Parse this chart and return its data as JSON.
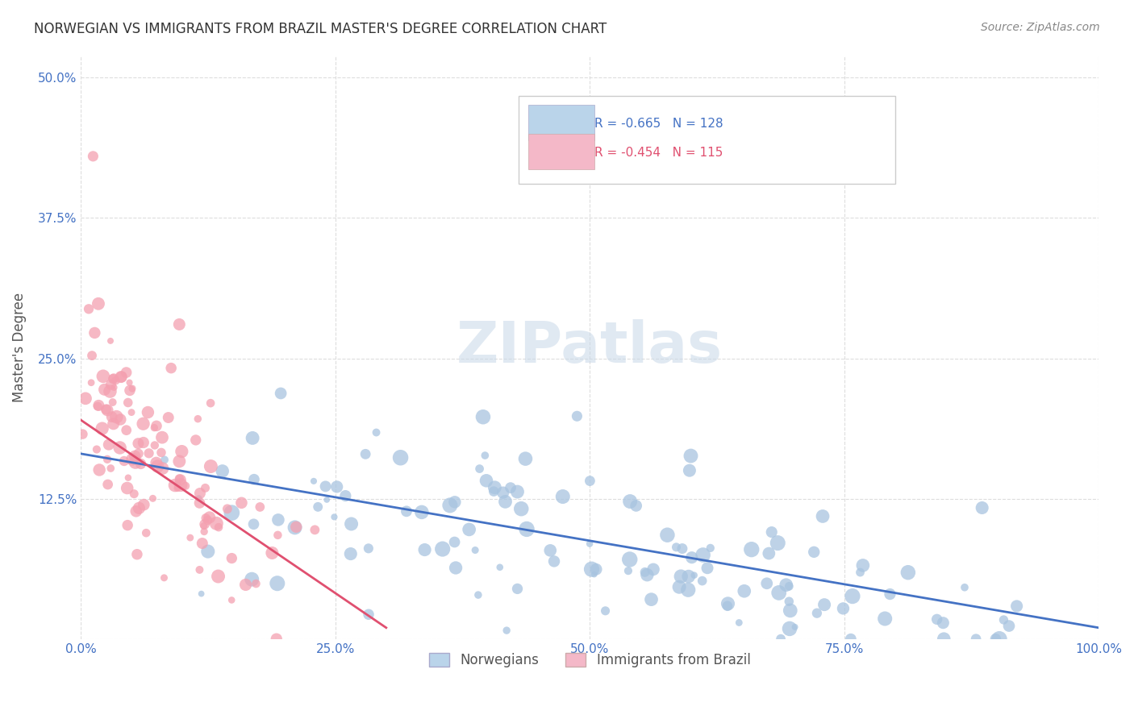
{
  "title": "NORWEGIAN VS IMMIGRANTS FROM BRAZIL MASTER'S DEGREE CORRELATION CHART",
  "source": "Source: ZipAtlas.com",
  "xlabel": "",
  "ylabel": "Master's Degree",
  "watermark": "ZIPatlas",
  "xlim": [
    0.0,
    1.0
  ],
  "ylim": [
    0.0,
    0.52
  ],
  "xticks": [
    0.0,
    0.25,
    0.5,
    0.75,
    1.0
  ],
  "xtick_labels": [
    "0.0%",
    "25.0%",
    "50.0%",
    "75.0%",
    "100.0%"
  ],
  "yticks": [
    0.0,
    0.125,
    0.25,
    0.375,
    0.5
  ],
  "ytick_labels": [
    "",
    "12.5%",
    "25.0%",
    "37.5%",
    "50.0%"
  ],
  "norwegian_R": -0.665,
  "norwegian_N": 128,
  "brazil_R": -0.454,
  "brazil_N": 115,
  "norwegian_color": "#a8c4e0",
  "brazil_color": "#f4a0b0",
  "norwegian_line_color": "#4472c4",
  "brazil_line_color": "#e05070",
  "background_color": "#ffffff",
  "grid_color": "#dddddd",
  "title_color": "#333333",
  "axis_color": "#4472c4",
  "legend_box_color_norwegian": "#bad4ea",
  "legend_box_color_brazil": "#f4b8c8",
  "seed": 42
}
